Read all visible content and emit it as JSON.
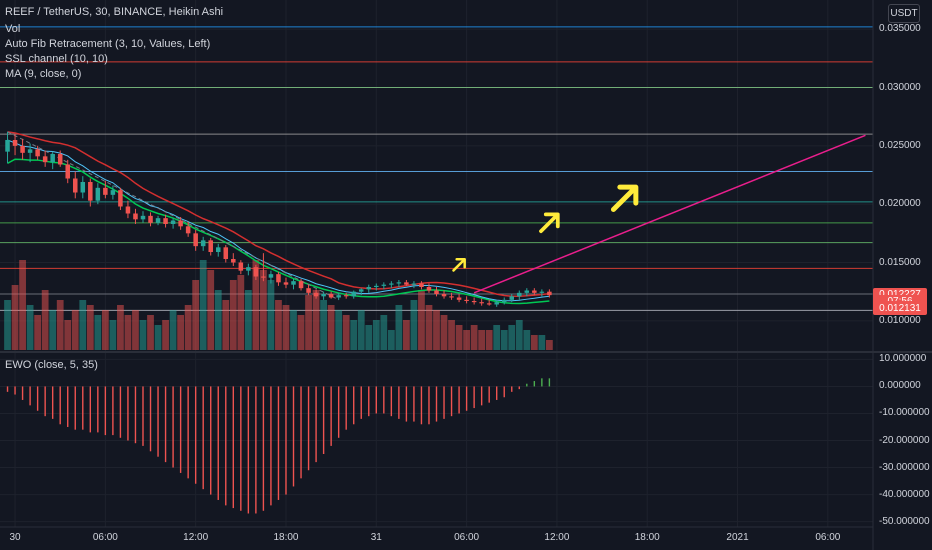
{
  "header": {
    "symbol_line": "REEF / TetherUS, 30, BINANCE, Heikin Ashi",
    "indicators": [
      "Vol",
      "Auto Fib Retracement (3, 10, Values, Left)",
      "SSL channel (10, 10)",
      "MA (9, close, 0)"
    ],
    "currency_button": "USDT"
  },
  "sub_pane": {
    "title": "EWO (close, 5, 35)"
  },
  "colors": {
    "up": "#26a69a",
    "down": "#ef5350",
    "trend": "#e91e8c",
    "annotation": "#ffeb3b",
    "ssl_up": "#00c853",
    "ssl_down": "#d32f2f",
    "ma": "#4fc3f7",
    "grid": "#1e222d"
  },
  "chart_data": [
    {
      "type": "candlestick",
      "price_axis": {
        "range": [
          0.0075,
          0.0375
        ],
        "ticks": [
          "0.035000",
          "0.030000",
          "0.025000",
          "0.020000",
          "0.015000",
          "0.010000"
        ],
        "tick_values": [
          0.035,
          0.03,
          0.025,
          0.02,
          0.015,
          0.01
        ]
      },
      "time_axis": {
        "labels": [
          "30",
          "06:00",
          "12:00",
          "18:00",
          "31",
          "06:00",
          "12:00",
          "18:00",
          "2021",
          "06:00"
        ],
        "label_hours": [
          0,
          6,
          12,
          18,
          24,
          30,
          36,
          42,
          48,
          54
        ],
        "range_hours": [
          -1,
          57
        ]
      },
      "price_tags": [
        {
          "label": "0.012227",
          "value": 0.012227,
          "color": "#ef5350"
        },
        {
          "label": "07:56",
          "value": 0.01165,
          "color": "#ef5350"
        },
        {
          "label": "0.012131",
          "value": 0.01108,
          "color": "#ef5350"
        }
      ],
      "fib_levels": [
        {
          "value": 0.0352,
          "color": "#2196f3"
        },
        {
          "value": 0.0322,
          "color": "#f44336"
        },
        {
          "value": 0.03,
          "color": "#81c784"
        },
        {
          "value": 0.026,
          "color": "#9e9e9e"
        },
        {
          "value": 0.0228,
          "color": "#64b5f6"
        },
        {
          "value": 0.0202,
          "color": "#26a69a"
        },
        {
          "value": 0.0184,
          "color": "#4caf50"
        },
        {
          "value": 0.0167,
          "color": "#66bb6a"
        },
        {
          "value": 0.0145,
          "color": "#f44336"
        },
        {
          "value": 0.0123,
          "color": "#787b86"
        },
        {
          "value": 0.0109,
          "color": "#b2b5be"
        }
      ],
      "candles": [
        {
          "o": 0.0245,
          "h": 0.0262,
          "l": 0.0235,
          "c": 0.0255
        },
        {
          "o": 0.0255,
          "h": 0.026,
          "l": 0.0242,
          "c": 0.025
        },
        {
          "o": 0.025,
          "h": 0.0256,
          "l": 0.0238,
          "c": 0.0244
        },
        {
          "o": 0.0244,
          "h": 0.0252,
          "l": 0.0236,
          "c": 0.0247
        },
        {
          "o": 0.0247,
          "h": 0.025,
          "l": 0.0238,
          "c": 0.0241
        },
        {
          "o": 0.0241,
          "h": 0.0246,
          "l": 0.0232,
          "c": 0.0236
        },
        {
          "o": 0.0236,
          "h": 0.0245,
          "l": 0.023,
          "c": 0.0243
        },
        {
          "o": 0.0243,
          "h": 0.0246,
          "l": 0.0232,
          "c": 0.0234
        },
        {
          "o": 0.0234,
          "h": 0.0238,
          "l": 0.0218,
          "c": 0.0222
        },
        {
          "o": 0.0222,
          "h": 0.0228,
          "l": 0.0205,
          "c": 0.021
        },
        {
          "o": 0.021,
          "h": 0.0224,
          "l": 0.0205,
          "c": 0.0219
        },
        {
          "o": 0.0219,
          "h": 0.0222,
          "l": 0.0198,
          "c": 0.0203
        },
        {
          "o": 0.0203,
          "h": 0.0218,
          "l": 0.02,
          "c": 0.0214
        },
        {
          "o": 0.0214,
          "h": 0.022,
          "l": 0.0205,
          "c": 0.0208
        },
        {
          "o": 0.0208,
          "h": 0.0216,
          "l": 0.0204,
          "c": 0.0212
        },
        {
          "o": 0.0212,
          "h": 0.0214,
          "l": 0.0195,
          "c": 0.0198
        },
        {
          "o": 0.0198,
          "h": 0.0203,
          "l": 0.0188,
          "c": 0.0192
        },
        {
          "o": 0.0192,
          "h": 0.0196,
          "l": 0.0183,
          "c": 0.0187
        },
        {
          "o": 0.0187,
          "h": 0.0194,
          "l": 0.0184,
          "c": 0.019
        },
        {
          "o": 0.019,
          "h": 0.0193,
          "l": 0.0181,
          "c": 0.0184
        },
        {
          "o": 0.0184,
          "h": 0.019,
          "l": 0.0182,
          "c": 0.0188
        },
        {
          "o": 0.0188,
          "h": 0.0191,
          "l": 0.018,
          "c": 0.0183
        },
        {
          "o": 0.0183,
          "h": 0.0188,
          "l": 0.0179,
          "c": 0.0186
        },
        {
          "o": 0.0186,
          "h": 0.0189,
          "l": 0.0178,
          "c": 0.0181
        },
        {
          "o": 0.0181,
          "h": 0.0185,
          "l": 0.0172,
          "c": 0.0175
        },
        {
          "o": 0.0175,
          "h": 0.0178,
          "l": 0.016,
          "c": 0.0164
        },
        {
          "o": 0.0164,
          "h": 0.0172,
          "l": 0.016,
          "c": 0.0169
        },
        {
          "o": 0.0169,
          "h": 0.0171,
          "l": 0.0156,
          "c": 0.0159
        },
        {
          "o": 0.0159,
          "h": 0.0166,
          "l": 0.0155,
          "c": 0.0163
        },
        {
          "o": 0.0163,
          "h": 0.0165,
          "l": 0.015,
          "c": 0.0153
        },
        {
          "o": 0.0153,
          "h": 0.0158,
          "l": 0.0147,
          "c": 0.015
        },
        {
          "o": 0.015,
          "h": 0.0152,
          "l": 0.014,
          "c": 0.0143
        },
        {
          "o": 0.0143,
          "h": 0.0149,
          "l": 0.0139,
          "c": 0.0146
        },
        {
          "o": 0.0146,
          "h": 0.0148,
          "l": 0.0135,
          "c": 0.0138
        },
        {
          "o": 0.0138,
          "h": 0.0158,
          "l": 0.0134,
          "c": 0.0137
        },
        {
          "o": 0.0137,
          "h": 0.0143,
          "l": 0.0132,
          "c": 0.014
        },
        {
          "o": 0.014,
          "h": 0.0142,
          "l": 0.013,
          "c": 0.0133
        },
        {
          "o": 0.0133,
          "h": 0.0137,
          "l": 0.0128,
          "c": 0.0131
        },
        {
          "o": 0.0131,
          "h": 0.0136,
          "l": 0.0127,
          "c": 0.0134
        },
        {
          "o": 0.0134,
          "h": 0.0136,
          "l": 0.0126,
          "c": 0.0128
        },
        {
          "o": 0.0128,
          "h": 0.0131,
          "l": 0.0122,
          "c": 0.0124
        },
        {
          "o": 0.0124,
          "h": 0.0127,
          "l": 0.0119,
          "c": 0.0121
        },
        {
          "o": 0.0121,
          "h": 0.0125,
          "l": 0.0118,
          "c": 0.0123
        },
        {
          "o": 0.0123,
          "h": 0.0125,
          "l": 0.0119,
          "c": 0.012
        },
        {
          "o": 0.012,
          "h": 0.0124,
          "l": 0.0118,
          "c": 0.0122
        },
        {
          "o": 0.0122,
          "h": 0.0124,
          "l": 0.0119,
          "c": 0.0121
        },
        {
          "o": 0.0121,
          "h": 0.0126,
          "l": 0.0119,
          "c": 0.0125
        },
        {
          "o": 0.0125,
          "h": 0.0128,
          "l": 0.0122,
          "c": 0.0127
        },
        {
          "o": 0.0127,
          "h": 0.0131,
          "l": 0.0124,
          "c": 0.0129
        },
        {
          "o": 0.0129,
          "h": 0.0132,
          "l": 0.0126,
          "c": 0.013
        },
        {
          "o": 0.013,
          "h": 0.0133,
          "l": 0.0127,
          "c": 0.0131
        },
        {
          "o": 0.0131,
          "h": 0.0134,
          "l": 0.0128,
          "c": 0.0132
        },
        {
          "o": 0.0132,
          "h": 0.0135,
          "l": 0.0129,
          "c": 0.0133
        },
        {
          "o": 0.0133,
          "h": 0.0135,
          "l": 0.013,
          "c": 0.0131
        },
        {
          "o": 0.0131,
          "h": 0.0134,
          "l": 0.0128,
          "c": 0.0132
        },
        {
          "o": 0.0132,
          "h": 0.0134,
          "l": 0.0127,
          "c": 0.0129
        },
        {
          "o": 0.0129,
          "h": 0.0132,
          "l": 0.0124,
          "c": 0.0126
        },
        {
          "o": 0.0126,
          "h": 0.0129,
          "l": 0.0121,
          "c": 0.0123
        },
        {
          "o": 0.0123,
          "h": 0.0126,
          "l": 0.0119,
          "c": 0.0121
        },
        {
          "o": 0.0121,
          "h": 0.0124,
          "l": 0.0118,
          "c": 0.012
        },
        {
          "o": 0.012,
          "h": 0.0123,
          "l": 0.0116,
          "c": 0.0118
        },
        {
          "o": 0.0118,
          "h": 0.0121,
          "l": 0.0115,
          "c": 0.0117
        },
        {
          "o": 0.0117,
          "h": 0.012,
          "l": 0.0114,
          "c": 0.0116
        },
        {
          "o": 0.0116,
          "h": 0.0119,
          "l": 0.0113,
          "c": 0.0115
        },
        {
          "o": 0.0115,
          "h": 0.0118,
          "l": 0.0113,
          "c": 0.0114
        },
        {
          "o": 0.0114,
          "h": 0.0117,
          "l": 0.0112,
          "c": 0.0116
        },
        {
          "o": 0.0116,
          "h": 0.012,
          "l": 0.0114,
          "c": 0.0118
        },
        {
          "o": 0.0118,
          "h": 0.0123,
          "l": 0.0116,
          "c": 0.0121
        },
        {
          "o": 0.0121,
          "h": 0.0126,
          "l": 0.0118,
          "c": 0.0124
        },
        {
          "o": 0.0124,
          "h": 0.0128,
          "l": 0.0121,
          "c": 0.0126
        },
        {
          "o": 0.0126,
          "h": 0.0128,
          "l": 0.0122,
          "c": 0.0124
        },
        {
          "o": 0.0124,
          "h": 0.0127,
          "l": 0.0121,
          "c": 0.0125
        },
        {
          "o": 0.0125,
          "h": 0.0127,
          "l": 0.012,
          "c": 0.0122
        }
      ],
      "volumes": [
        10,
        13,
        18,
        9,
        7,
        12,
        8,
        10,
        6,
        8,
        10,
        9,
        7,
        8,
        6,
        9,
        7,
        8,
        6,
        7,
        5,
        6,
        8,
        7,
        9,
        14,
        18,
        16,
        12,
        10,
        14,
        15,
        12,
        18,
        16,
        14,
        10,
        9,
        8,
        7,
        11,
        12,
        10,
        9,
        8,
        7,
        6,
        8,
        5,
        6,
        7,
        4,
        9,
        6,
        10,
        12,
        9,
        8,
        7,
        6,
        5,
        4,
        5,
        4,
        4,
        5,
        4,
        5,
        6,
        4,
        3,
        3,
        2
      ],
      "ewo": [
        -2,
        -3,
        -5,
        -7,
        -9,
        -11,
        -12,
        -14,
        -15,
        -16,
        -16,
        -17,
        -17,
        -18,
        -18,
        -19,
        -20,
        -21,
        -22,
        -24,
        -26,
        -28,
        -30,
        -32,
        -34,
        -36,
        -38,
        -40,
        -42,
        -44,
        -45,
        -46,
        -47,
        -47,
        -46,
        -44,
        -42,
        -40,
        -37,
        -34,
        -31,
        -28,
        -25,
        -22,
        -19,
        -16,
        -14,
        -12,
        -11,
        -10,
        -10,
        -11,
        -12,
        -13,
        -13,
        -14,
        -14,
        -13,
        -12,
        -11,
        -10,
        -9,
        -8,
        -7,
        -6,
        -5,
        -4,
        -2,
        -1,
        1,
        2,
        3,
        3
      ],
      "ewo_axis": {
        "range": [
          -52,
          12
        ],
        "ticks": [
          "10.000000",
          "0.000000",
          "-10.000000",
          "-20.000000",
          "-30.000000",
          "-40.000000",
          "-50.000000"
        ],
        "tick_values": [
          10,
          0,
          -10,
          -20,
          -30,
          -40,
          -50
        ]
      },
      "trend_line": {
        "from": [
          30.5,
          0.0124
        ],
        "to": [
          56.5,
          0.0259
        ]
      },
      "arrows": [
        {
          "at": [
            29.5,
            0.0148
          ],
          "size": 1
        },
        {
          "at": [
            35.5,
            0.0184
          ],
          "size": 1.5
        },
        {
          "at": [
            40.5,
            0.0205
          ],
          "size": 2
        }
      ]
    }
  ]
}
